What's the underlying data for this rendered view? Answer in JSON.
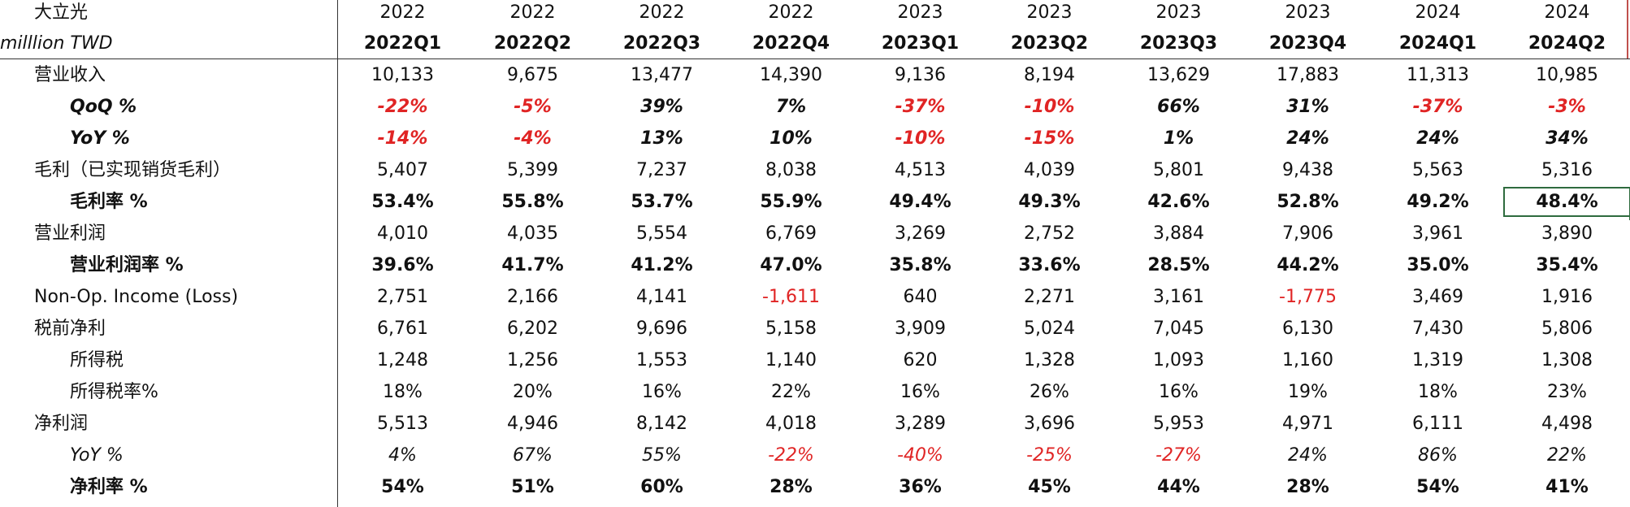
{
  "header": {
    "company": "大立光",
    "unit": "milllion TWD",
    "years": [
      "2022",
      "2022",
      "2022",
      "2022",
      "2023",
      "2023",
      "2023",
      "2023",
      "2024",
      "2024"
    ],
    "quarters": [
      "2022Q1",
      "2022Q2",
      "2022Q3",
      "2022Q4",
      "2023Q1",
      "2023Q2",
      "2023Q3",
      "2023Q4",
      "2024Q1",
      "2024Q2"
    ]
  },
  "rows": [
    {
      "label": "营业收入",
      "indent": 1,
      "style": "normal",
      "values": [
        "10,133",
        "9,675",
        "13,477",
        "14,390",
        "9,136",
        "8,194",
        "13,629",
        "17,883",
        "11,313",
        "10,985"
      ]
    },
    {
      "label": "QoQ %",
      "indent": 2,
      "style": "bold-italic",
      "values": [
        "-22%",
        "-5%",
        "39%",
        "7%",
        "-37%",
        "-10%",
        "66%",
        "31%",
        "-37%",
        "-3%"
      ]
    },
    {
      "label": "YoY %",
      "indent": 2,
      "style": "bold-italic",
      "values": [
        "-14%",
        "-4%",
        "13%",
        "10%",
        "-10%",
        "-15%",
        "1%",
        "24%",
        "24%",
        "34%"
      ]
    },
    {
      "label": "毛利（已实现销货毛利）",
      "indent": 1,
      "style": "normal",
      "values": [
        "5,407",
        "5,399",
        "7,237",
        "8,038",
        "4,513",
        "4,039",
        "5,801",
        "9,438",
        "5,563",
        "5,316"
      ]
    },
    {
      "label": "毛利率 %",
      "indent": 2,
      "style": "bold",
      "values": [
        "53.4%",
        "55.8%",
        "53.7%",
        "55.9%",
        "49.4%",
        "49.3%",
        "42.6%",
        "52.8%",
        "49.2%",
        "48.4%"
      ]
    },
    {
      "label": "营业利润",
      "indent": 1,
      "style": "normal",
      "values": [
        "4,010",
        "4,035",
        "5,554",
        "6,769",
        "3,269",
        "2,752",
        "3,884",
        "7,906",
        "3,961",
        "3,890"
      ]
    },
    {
      "label": "营业利润率 %",
      "indent": 2,
      "style": "bold",
      "values": [
        "39.6%",
        "41.7%",
        "41.2%",
        "47.0%",
        "35.8%",
        "33.6%",
        "28.5%",
        "44.2%",
        "35.0%",
        "35.4%"
      ]
    },
    {
      "label": "Non-Op. Income (Loss)",
      "indent": 1,
      "style": "normal",
      "values": [
        "2,751",
        "2,166",
        "4,141",
        "-1,611",
        "640",
        "2,271",
        "3,161",
        "-1,775",
        "3,469",
        "1,916"
      ]
    },
    {
      "label": "税前净利",
      "indent": 1,
      "style": "normal",
      "values": [
        "6,761",
        "6,202",
        "9,696",
        "5,158",
        "3,909",
        "5,024",
        "7,045",
        "6,130",
        "7,430",
        "5,806"
      ]
    },
    {
      "label": "所得税",
      "indent": 2,
      "style": "normal",
      "values": [
        "1,248",
        "1,256",
        "1,553",
        "1,140",
        "620",
        "1,328",
        "1,093",
        "1,160",
        "1,319",
        "1,308"
      ]
    },
    {
      "label": "所得税率%",
      "indent": 2,
      "style": "normal",
      "values": [
        "18%",
        "20%",
        "16%",
        "22%",
        "16%",
        "26%",
        "16%",
        "19%",
        "18%",
        "23%"
      ]
    },
    {
      "label": "净利润",
      "indent": 1,
      "style": "normal",
      "values": [
        "5,513",
        "4,946",
        "8,142",
        "4,018",
        "3,289",
        "3,696",
        "5,953",
        "4,971",
        "6,111",
        "4,498"
      ]
    },
    {
      "label": "YoY %",
      "indent": 2,
      "style": "italic",
      "values": [
        "4%",
        "67%",
        "55%",
        "-22%",
        "-40%",
        "-25%",
        "-27%",
        "24%",
        "86%",
        "22%"
      ]
    },
    {
      "label": "净利率 %",
      "indent": 2,
      "style": "bold",
      "values": [
        "54%",
        "51%",
        "60%",
        "28%",
        "36%",
        "45%",
        "44%",
        "28%",
        "54%",
        "41%"
      ]
    }
  ],
  "selected_cell": {
    "row": 4,
    "col": 9
  },
  "colors": {
    "negative": "#e02424",
    "selection": "#2e6b3e",
    "grid": "#333333",
    "accent_edge": "#c0504d"
  }
}
